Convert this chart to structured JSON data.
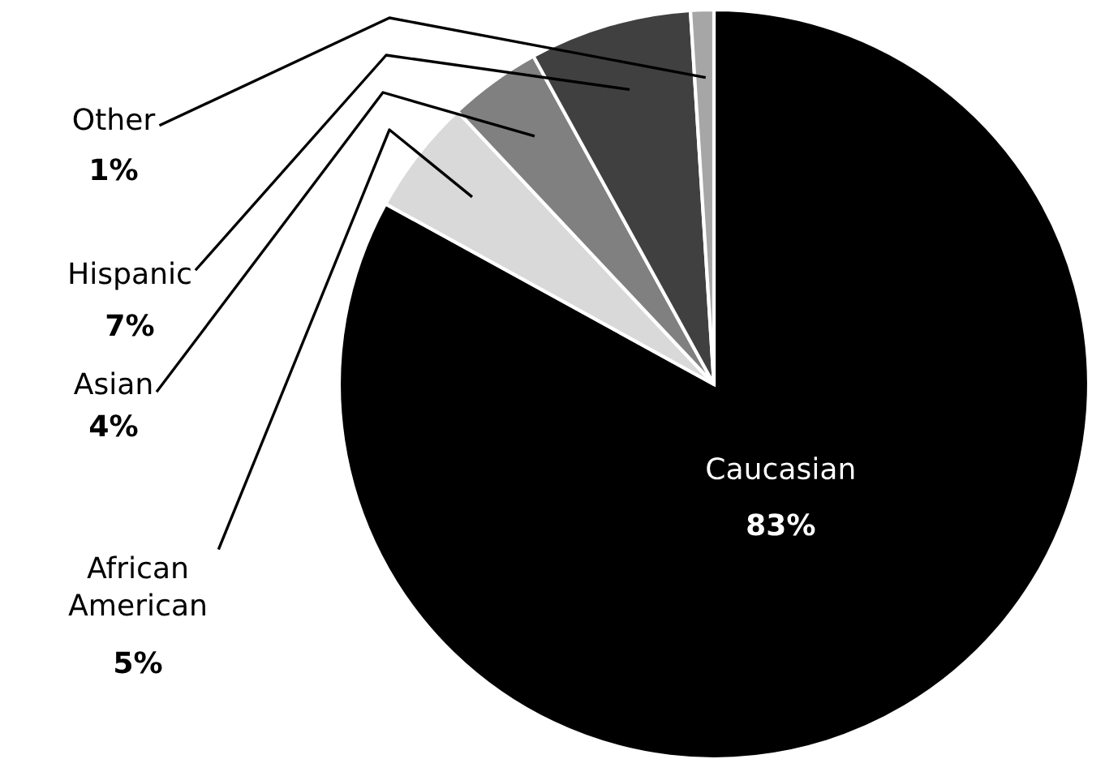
{
  "chart_data": {
    "type": "pie",
    "categories": [
      "Caucasian",
      "African\nAmerican",
      "Asian",
      "Hispanic",
      "Other"
    ],
    "values": [
      83,
      5,
      4,
      7,
      1
    ],
    "value_labels": [
      "83%",
      "5%",
      "4%",
      "7%",
      "1%"
    ],
    "colors": [
      "#000000",
      "#d9d9d9",
      "#808080",
      "#404040",
      "#a6a6a6"
    ]
  }
}
